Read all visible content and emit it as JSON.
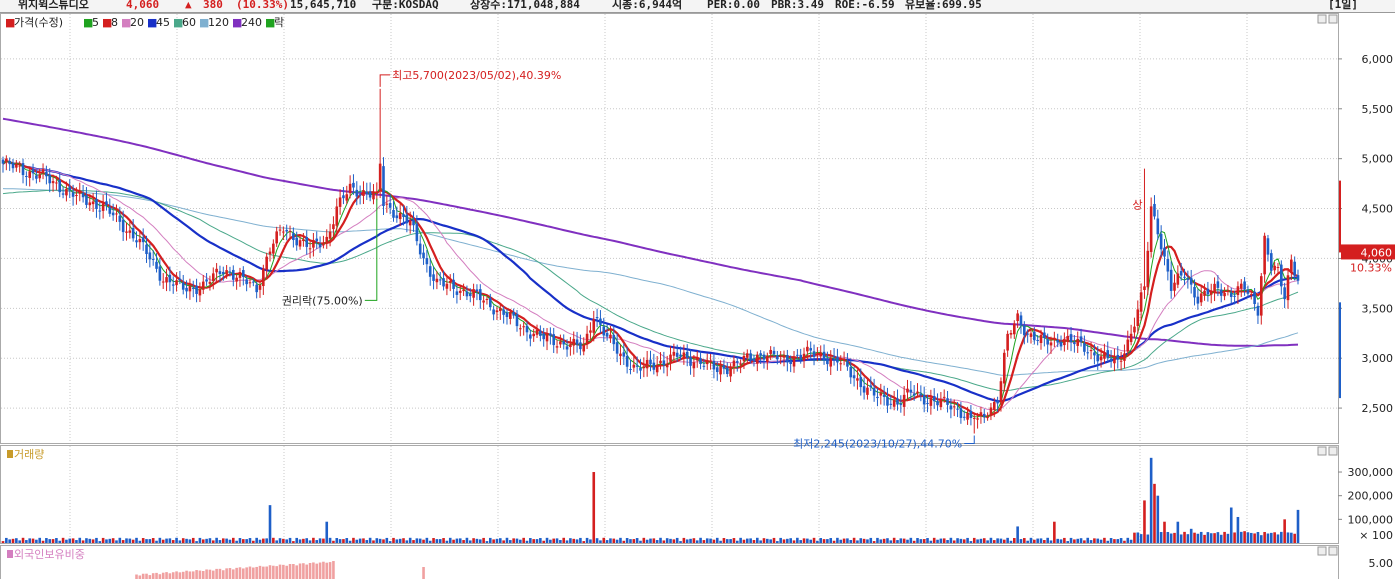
{
  "header": {
    "name": "위지윅스튜디오",
    "price": "4,060",
    "change_arrow": "▲",
    "change": "380",
    "change_pct": "(10.33%)",
    "volume": "15,645,710",
    "market": "구분:KOSDAQ",
    "shares": "상장수:171,048,884",
    "mktcap": "시총:6,944억",
    "per": "PER:0.00",
    "pbr": "PBR:3.49",
    "roe": "ROE:-6.59",
    "turnover": "유보율:699.95",
    "period": "[1일]"
  },
  "colors": {
    "up": "#d41f1f",
    "down": "#1e5fc8",
    "ma5": "#1fa31f",
    "ma8": "#d41f1f",
    "ma20": "#d47fc0",
    "ma45": "#1830c8",
    "ma60": "#4aa88a",
    "ma120": "#7fb0d0",
    "ma240": "#8030c0",
    "grid": "#c8c8c8"
  },
  "legend": [
    {
      "label": "가격(수정)",
      "color": "#d41f1f",
      "marker": "■"
    },
    {
      "label": "5",
      "color": "#1fa31f",
      "marker": "■"
    },
    {
      "label": "8",
      "color": "#d41f1f",
      "marker": "■"
    },
    {
      "label": "20",
      "color": "#d47fc0",
      "marker": "■"
    },
    {
      "label": "45",
      "color": "#1830c8",
      "marker": "■"
    },
    {
      "label": "60",
      "color": "#4aa88a",
      "marker": "■"
    },
    {
      "label": "120",
      "color": "#7fb0d0",
      "marker": "■"
    },
    {
      "label": "240",
      "color": "#8030c0",
      "marker": "■"
    },
    {
      "label": "락",
      "color": "#1fa31f",
      "marker": "■"
    }
  ],
  "annotations": {
    "high": "최고5,700(2023/05/02),40.39%",
    "low": "최저2,245(2023/10/27),44.70%",
    "rights": "권리락(75.00%)",
    "up_mark": "상",
    "last_price": "4,060",
    "last_pct": "10.33%"
  },
  "volume_panel": {
    "title": "거래량",
    "unit": "× 100"
  },
  "foreign_panel": {
    "title": "외국인보유비중"
  },
  "chart_data": [
    {
      "type": "candlestick",
      "title": "가격(수정)",
      "ylim": [
        2150,
        6450
      ],
      "yticks": [
        2500,
        3000,
        3500,
        4000,
        4500,
        5000,
        5500,
        6000
      ],
      "ytick_labels": [
        "2,500",
        "3,000",
        "3,500",
        "4,000",
        "4,500",
        "5,000",
        "5,500",
        "6,000"
      ],
      "grid": true,
      "control_points": [
        [
          0,
          4950
        ],
        [
          12,
          4820
        ],
        [
          22,
          4620
        ],
        [
          30,
          4520
        ],
        [
          40,
          4200
        ],
        [
          48,
          3800
        ],
        [
          54,
          3700
        ],
        [
          60,
          3720
        ],
        [
          66,
          3900
        ],
        [
          72,
          3780
        ],
        [
          76,
          3700
        ],
        [
          80,
          4100
        ],
        [
          84,
          4300
        ],
        [
          88,
          4200
        ],
        [
          92,
          4100
        ],
        [
          97,
          4200
        ],
        [
          100,
          4500
        ],
        [
          104,
          4700
        ],
        [
          110,
          4650
        ],
        [
          116,
          4500
        ],
        [
          122,
          4350
        ],
        [
          126,
          4000
        ],
        [
          130,
          3750
        ],
        [
          136,
          3700
        ],
        [
          142,
          3620
        ],
        [
          150,
          3450
        ],
        [
          156,
          3300
        ],
        [
          162,
          3200
        ],
        [
          168,
          3150
        ],
        [
          174,
          3100
        ],
        [
          177,
          3450
        ],
        [
          181,
          3200
        ],
        [
          186,
          3000
        ],
        [
          190,
          2880
        ],
        [
          196,
          2950
        ],
        [
          202,
          3020
        ],
        [
          208,
          2980
        ],
        [
          214,
          2880
        ],
        [
          220,
          2950
        ],
        [
          228,
          3050
        ],
        [
          234,
          2980
        ],
        [
          240,
          3050
        ],
        [
          246,
          3020
        ],
        [
          250,
          2980
        ],
        [
          256,
          2780
        ],
        [
          262,
          2600
        ],
        [
          268,
          2560
        ],
        [
          272,
          2650
        ],
        [
          278,
          2580
        ],
        [
          284,
          2520
        ],
        [
          288,
          2450
        ],
        [
          291,
          2340
        ],
        [
          294,
          2420
        ],
        [
          298,
          2600
        ],
        [
          301,
          3200
        ],
        [
          304,
          3400
        ],
        [
          307,
          3250
        ],
        [
          312,
          3150
        ],
        [
          318,
          3200
        ],
        [
          324,
          3100
        ],
        [
          330,
          3000
        ],
        [
          334,
          2950
        ],
        [
          338,
          3250
        ],
        [
          342,
          3700
        ],
        [
          344,
          4500
        ],
        [
          346,
          4300
        ],
        [
          350,
          3700
        ],
        [
          354,
          3850
        ],
        [
          358,
          3600
        ],
        [
          364,
          3700
        ],
        [
          368,
          3650
        ],
        [
          372,
          3700
        ],
        [
          376,
          3500
        ],
        [
          378,
          4200
        ],
        [
          380,
          3900
        ],
        [
          382,
          3850
        ],
        [
          384,
          3620
        ],
        [
          386,
          4000
        ],
        [
          388,
          3800
        ]
      ],
      "volume_spikes": [
        [
          80,
          1600
        ],
        [
          97,
          900
        ],
        [
          177,
          3000
        ],
        [
          304,
          700
        ],
        [
          315,
          900
        ],
        [
          342,
          1800
        ],
        [
          344,
          3600
        ],
        [
          345,
          2500
        ],
        [
          346,
          2000
        ],
        [
          348,
          900
        ],
        [
          352,
          900
        ],
        [
          356,
          600
        ],
        [
          368,
          1500
        ],
        [
          370,
          1100
        ],
        [
          372,
          500
        ],
        [
          384,
          1000
        ],
        [
          388,
          1400
        ]
      ],
      "ma_windows": [
        5,
        8,
        20,
        45,
        60,
        120,
        240
      ],
      "high_point": {
        "date": "2023/05/02",
        "value": 5700
      },
      "low_point": {
        "date": "2023/10/27",
        "value": 2245
      },
      "last": 4060
    },
    {
      "type": "bar",
      "title": "거래량",
      "yticks": [
        100000,
        200000,
        300000
      ],
      "ytick_labels": [
        "100,000",
        "200,000",
        "300,000"
      ],
      "ylim": [
        0,
        410000
      ]
    },
    {
      "type": "bar",
      "title": "외국인보유비중",
      "ytick_labels": [
        "5.00"
      ]
    }
  ]
}
